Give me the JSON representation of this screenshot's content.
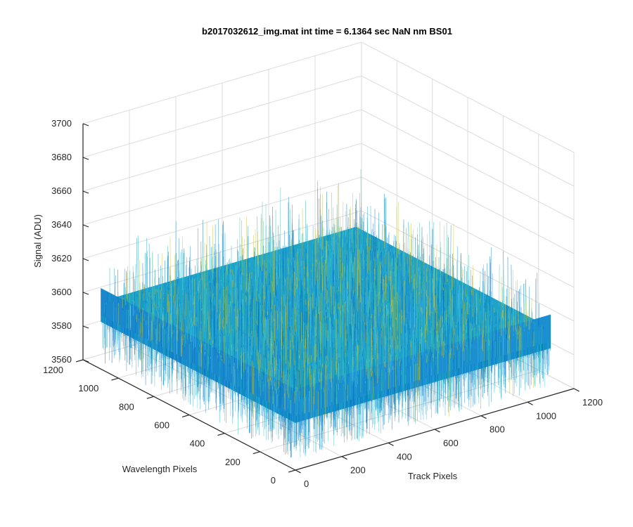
{
  "chart_data": {
    "type": "surface",
    "title": "b2017032612_img.mat int time = 6.1364 sec  NaN nm BS01",
    "xlabel": "Track Pixels",
    "ylabel": "Wavelength Pixels",
    "zlabel": "Signal (ADU)",
    "xlim": [
      0,
      1200
    ],
    "ylim": [
      0,
      1200
    ],
    "zlim": [
      3560,
      3700
    ],
    "xticks": [
      "0",
      "200",
      "400",
      "600",
      "800",
      "1000",
      "1200"
    ],
    "yticks": [
      "0",
      "200",
      "400",
      "600",
      "800",
      "1000",
      "1200"
    ],
    "zticks": [
      "3560",
      "3580",
      "3600",
      "3620",
      "3640",
      "3660",
      "3680",
      "3700"
    ],
    "surface": {
      "x_range": [
        0,
        1100
      ],
      "y_range": [
        0,
        1100
      ],
      "mean_signal": 3600,
      "signal_range": [
        3570,
        3640
      ],
      "colormap": [
        "#0072bd",
        "#1f8fd6",
        "#20b2c8",
        "#49c3b2",
        "#c9c43a"
      ]
    },
    "grid": true,
    "view": "3d"
  }
}
